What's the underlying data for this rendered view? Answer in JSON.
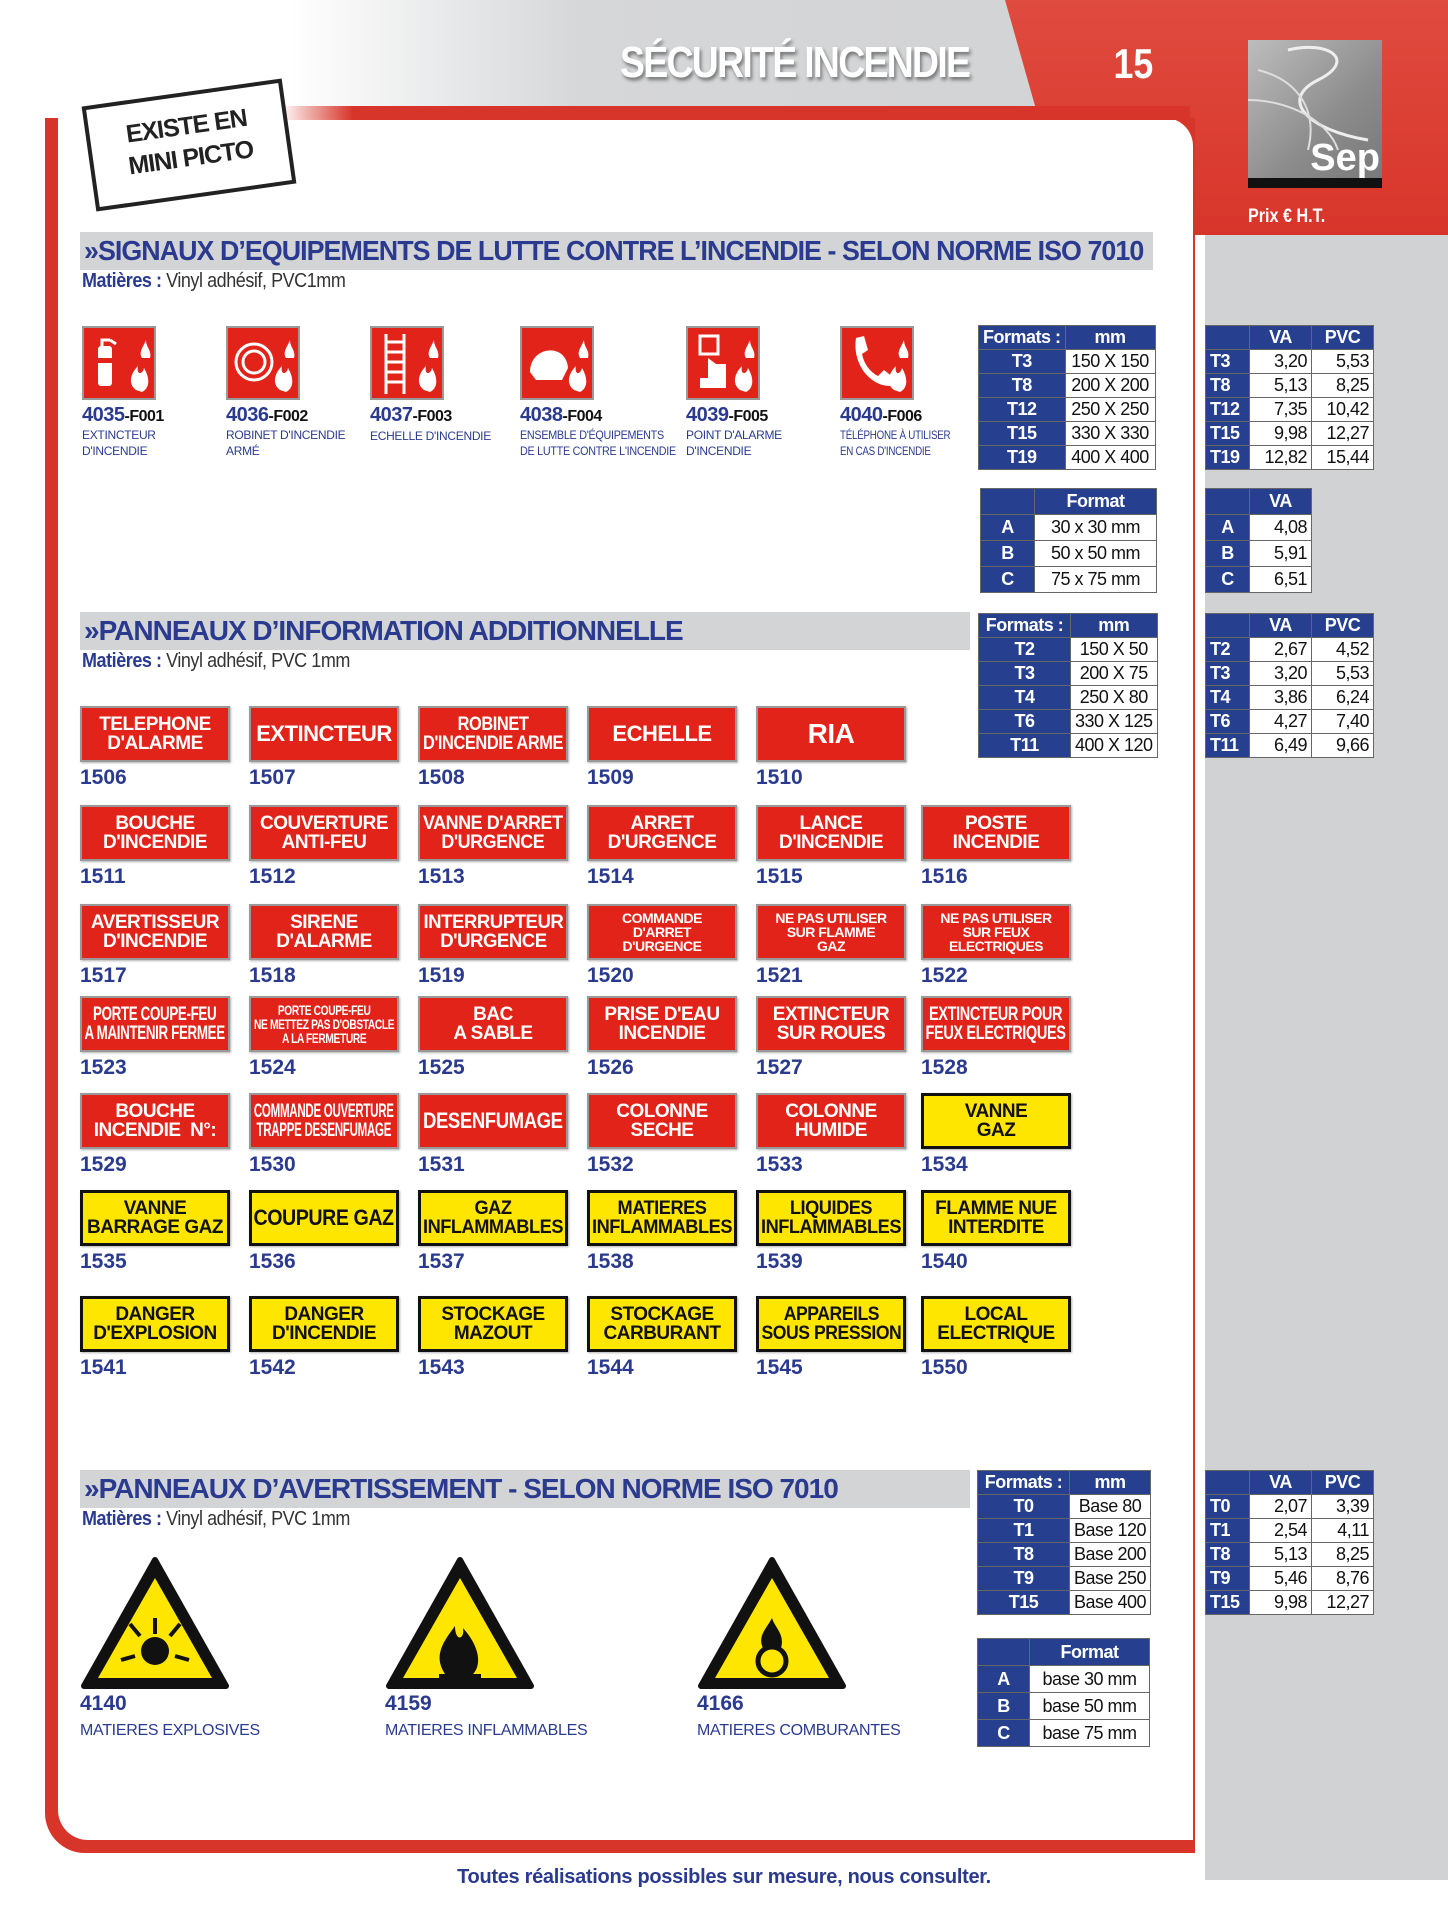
{
  "header": {
    "title": "SÉCURITÉ INCENDIE",
    "page_number": "15",
    "logo_text": "Sep",
    "price_label": "Prix € H.T.",
    "stamp": "EXISTE EN\nMINI PICTO"
  },
  "colors": {
    "brand_red": "#d8352a",
    "navy": "#26408f",
    "sign_red": "#e2231a",
    "sign_yellow": "#ffe600"
  },
  "section1": {
    "title": "»SIGNAUX D’EQUIPEMENTS DE LUTTE CONTRE L’INCENDIE - SELON NORME ISO 7010",
    "materials_label": "Matières :",
    "materials": " Vinyl adhésif, PVC1mm",
    "items": [
      {
        "code": "4035",
        "suffix": "-F001",
        "label": "EXTINCTEUR\nD'INCENDIE",
        "icon": "fire-extinguisher-icon"
      },
      {
        "code": "4036",
        "suffix": "-F002",
        "label": "ROBINET D'INCENDIE\nARMÉ",
        "icon": "fire-hose-icon"
      },
      {
        "code": "4037",
        "suffix": "-F003",
        "label": "ECHELLE D'INCENDIE",
        "icon": "ladder-icon"
      },
      {
        "code": "4038",
        "suffix": "-F004",
        "label": "ENSEMBLE D'ÉQUIPEMENTS\nDE LUTTE CONTRE L'INCENDIE",
        "icon": "helmet-icon"
      },
      {
        "code": "4039",
        "suffix": "-F005",
        "label": "POINT D'ALARME\nD'INCENDIE",
        "icon": "alarm-button-icon"
      },
      {
        "code": "4040",
        "suffix": "-F006",
        "label": "TÉLÉPHONE À UTILISER\nEN CAS D'INCENDIE",
        "icon": "phone-icon"
      }
    ],
    "formats": {
      "headers": [
        "Formats :",
        "mm"
      ],
      "rows": [
        [
          "T3",
          "150 X 150"
        ],
        [
          "T8",
          "200 X 200"
        ],
        [
          "T12",
          "250 X 250"
        ],
        [
          "T15",
          "330 X 330"
        ],
        [
          "T19",
          "400 X 400"
        ]
      ]
    },
    "prices": {
      "headers": [
        "",
        "VA",
        "PVC"
      ],
      "rows": [
        [
          "T3",
          "3,20",
          "5,53"
        ],
        [
          "T8",
          "5,13",
          "8,25"
        ],
        [
          "T12",
          "7,35",
          "10,42"
        ],
        [
          "T15",
          "9,98",
          "12,27"
        ],
        [
          "T19",
          "12,82",
          "15,44"
        ]
      ]
    },
    "mini_formats": {
      "headers": [
        "",
        "Format"
      ],
      "rows": [
        [
          "A",
          "30 x 30 mm"
        ],
        [
          "B",
          "50 x 50 mm"
        ],
        [
          "C",
          "75 x 75 mm"
        ]
      ]
    },
    "mini_prices": {
      "headers": [
        "",
        "VA"
      ],
      "rows": [
        [
          "A",
          "4,08"
        ],
        [
          "B",
          "5,91"
        ],
        [
          "C",
          "6,51"
        ]
      ]
    }
  },
  "section2": {
    "title": "»PANNEAUX D’INFORMATION ADDITIONNELLE",
    "materials_label": "Matières :",
    "materials": " Vinyl adhésif, PVC 1mm",
    "formats": {
      "headers": [
        "Formats :",
        "mm"
      ],
      "rows": [
        [
          "T2",
          "150 X 50"
        ],
        [
          "T3",
          "200 X 75"
        ],
        [
          "T4",
          "250 X 80"
        ],
        [
          "T6",
          "330 X 125"
        ],
        [
          "T11",
          "400 X 120"
        ]
      ]
    },
    "prices": {
      "headers": [
        "",
        "VA",
        "PVC"
      ],
      "rows": [
        [
          "T2",
          "2,67",
          "4,52"
        ],
        [
          "T3",
          "3,20",
          "5,53"
        ],
        [
          "T4",
          "3,86",
          "6,24"
        ],
        [
          "T6",
          "4,27",
          "7,40"
        ],
        [
          "T11",
          "6,49",
          "9,66"
        ]
      ]
    },
    "signs": [
      [
        {
          "n": "1506",
          "t": "TELEPHONE\nD'ALARME",
          "c": "red"
        },
        {
          "n": "1507",
          "t": "EXTINCTEUR",
          "c": "red"
        },
        {
          "n": "1508",
          "t": "ROBINET\nD'INCENDIE ARME",
          "c": "red"
        },
        {
          "n": "1509",
          "t": "ECHELLE",
          "c": "red"
        },
        {
          "n": "1510",
          "t": "RIA",
          "c": "red"
        }
      ],
      [
        {
          "n": "1511",
          "t": "BOUCHE\nD'INCENDIE",
          "c": "red"
        },
        {
          "n": "1512",
          "t": "COUVERTURE\nANTI-FEU",
          "c": "red"
        },
        {
          "n": "1513",
          "t": "VANNE D'ARRET\nD'URGENCE",
          "c": "red"
        },
        {
          "n": "1514",
          "t": "ARRET\nD'URGENCE",
          "c": "red"
        },
        {
          "n": "1515",
          "t": "LANCE\nD'INCENDIE",
          "c": "red"
        },
        {
          "n": "1516",
          "t": "POSTE\nINCENDIE",
          "c": "red"
        }
      ],
      [
        {
          "n": "1517",
          "t": "AVERTISSEUR\nD'INCENDIE",
          "c": "red"
        },
        {
          "n": "1518",
          "t": "SIRENE\nD'ALARME",
          "c": "red"
        },
        {
          "n": "1519",
          "t": "INTERRUPTEUR\nD'URGENCE",
          "c": "red"
        },
        {
          "n": "1520",
          "t": "COMMANDE\nD'ARRET\nD'URGENCE",
          "c": "red"
        },
        {
          "n": "1521",
          "t": "NE PAS UTILISER\nSUR FLAMME\nGAZ",
          "c": "red"
        },
        {
          "n": "1522",
          "t": "NE PAS UTILISER\nSUR FEUX\nELECTRIQUES",
          "c": "red"
        }
      ],
      [
        {
          "n": "1523",
          "t": "PORTE COUPE-FEU\nA MAINTENIR FERMEE",
          "c": "red"
        },
        {
          "n": "1524",
          "t": "PORTE COUPE-FEU\nNE METTEZ PAS D'OBSTACLE\nA LA FERMETURE",
          "c": "red"
        },
        {
          "n": "1525",
          "t": "BAC\nA SABLE",
          "c": "red"
        },
        {
          "n": "1526",
          "t": "PRISE D'EAU\nINCENDIE",
          "c": "red"
        },
        {
          "n": "1527",
          "t": "EXTINCTEUR\nSUR ROUES",
          "c": "red"
        },
        {
          "n": "1528",
          "t": "EXTINCTEUR POUR\nFEUX ELECTRIQUES",
          "c": "red"
        }
      ],
      [
        {
          "n": "1529",
          "t": "BOUCHE\nINCENDIE  N°:",
          "c": "red"
        },
        {
          "n": "1530",
          "t": "COMMANDE OUVERTURE\nTRAPPE DESENFUMAGE",
          "c": "red"
        },
        {
          "n": "1531",
          "t": "DESENFUMAGE",
          "c": "red"
        },
        {
          "n": "1532",
          "t": "COLONNE\nSECHE",
          "c": "red"
        },
        {
          "n": "1533",
          "t": "COLONNE\nHUMIDE",
          "c": "red"
        },
        {
          "n": "1534",
          "t": "VANNE\nGAZ",
          "c": "yellow"
        }
      ],
      [
        {
          "n": "1535",
          "t": "VANNE\nBARRAGE GAZ",
          "c": "yellow"
        },
        {
          "n": "1536",
          "t": "COUPURE GAZ",
          "c": "yellow"
        },
        {
          "n": "1537",
          "t": "GAZ\nINFLAMMABLES",
          "c": "yellow"
        },
        {
          "n": "1538",
          "t": "MATIERES\nINFLAMMABLES",
          "c": "yellow"
        },
        {
          "n": "1539",
          "t": "LIQUIDES\nINFLAMMABLES",
          "c": "yellow"
        },
        {
          "n": "1540",
          "t": "FLAMME NUE\nINTERDITE",
          "c": "yellow"
        }
      ],
      [
        {
          "n": "1541",
          "t": "DANGER\nD'EXPLOSION",
          "c": "yellow"
        },
        {
          "n": "1542",
          "t": "DANGER\nD'INCENDIE",
          "c": "yellow"
        },
        {
          "n": "1543",
          "t": "STOCKAGE\nMAZOUT",
          "c": "yellow"
        },
        {
          "n": "1544",
          "t": "STOCKAGE\nCARBURANT",
          "c": "yellow"
        },
        {
          "n": "1545",
          "t": "APPAREILS\nSOUS PRESSION",
          "c": "yellow"
        },
        {
          "n": "1550",
          "t": "LOCAL\nELECTRIQUE",
          "c": "yellow"
        }
      ]
    ]
  },
  "section3": {
    "title": "»PANNEAUX D’AVERTISSEMENT - SELON NORME ISO 7010",
    "materials_label": "Matières :",
    "materials": " Vinyl adhésif, PVC 1mm",
    "items": [
      {
        "code": "4140",
        "label": "MATIERES EXPLOSIVES",
        "icon": "explosive-icon"
      },
      {
        "code": "4159",
        "label": "MATIERES INFLAMMABLES",
        "icon": "flame-icon"
      },
      {
        "code": "4166",
        "label": "MATIERES COMBURANTES",
        "icon": "oxidizer-icon"
      }
    ],
    "formats": {
      "headers": [
        "Formats :",
        "mm"
      ],
      "rows": [
        [
          "T0",
          "Base 80"
        ],
        [
          "T1",
          "Base 120"
        ],
        [
          "T8",
          "Base 200"
        ],
        [
          "T9",
          "Base 250"
        ],
        [
          "T15",
          "Base 400"
        ]
      ]
    },
    "prices": {
      "headers": [
        "",
        "VA",
        "PVC"
      ],
      "rows": [
        [
          "T0",
          "2,07",
          "3,39"
        ],
        [
          "T1",
          "2,54",
          "4,11"
        ],
        [
          "T8",
          "5,13",
          "8,25"
        ],
        [
          "T9",
          "5,46",
          "8,76"
        ],
        [
          "T15",
          "9,98",
          "12,27"
        ]
      ]
    },
    "mini_formats": {
      "headers": [
        "",
        "Format"
      ],
      "rows": [
        [
          "A",
          "base 30 mm"
        ],
        [
          "B",
          "base 50 mm"
        ],
        [
          "C",
          "base 75 mm"
        ]
      ]
    }
  },
  "footer": "Toutes réalisations possibles sur mesure, nous consulter."
}
